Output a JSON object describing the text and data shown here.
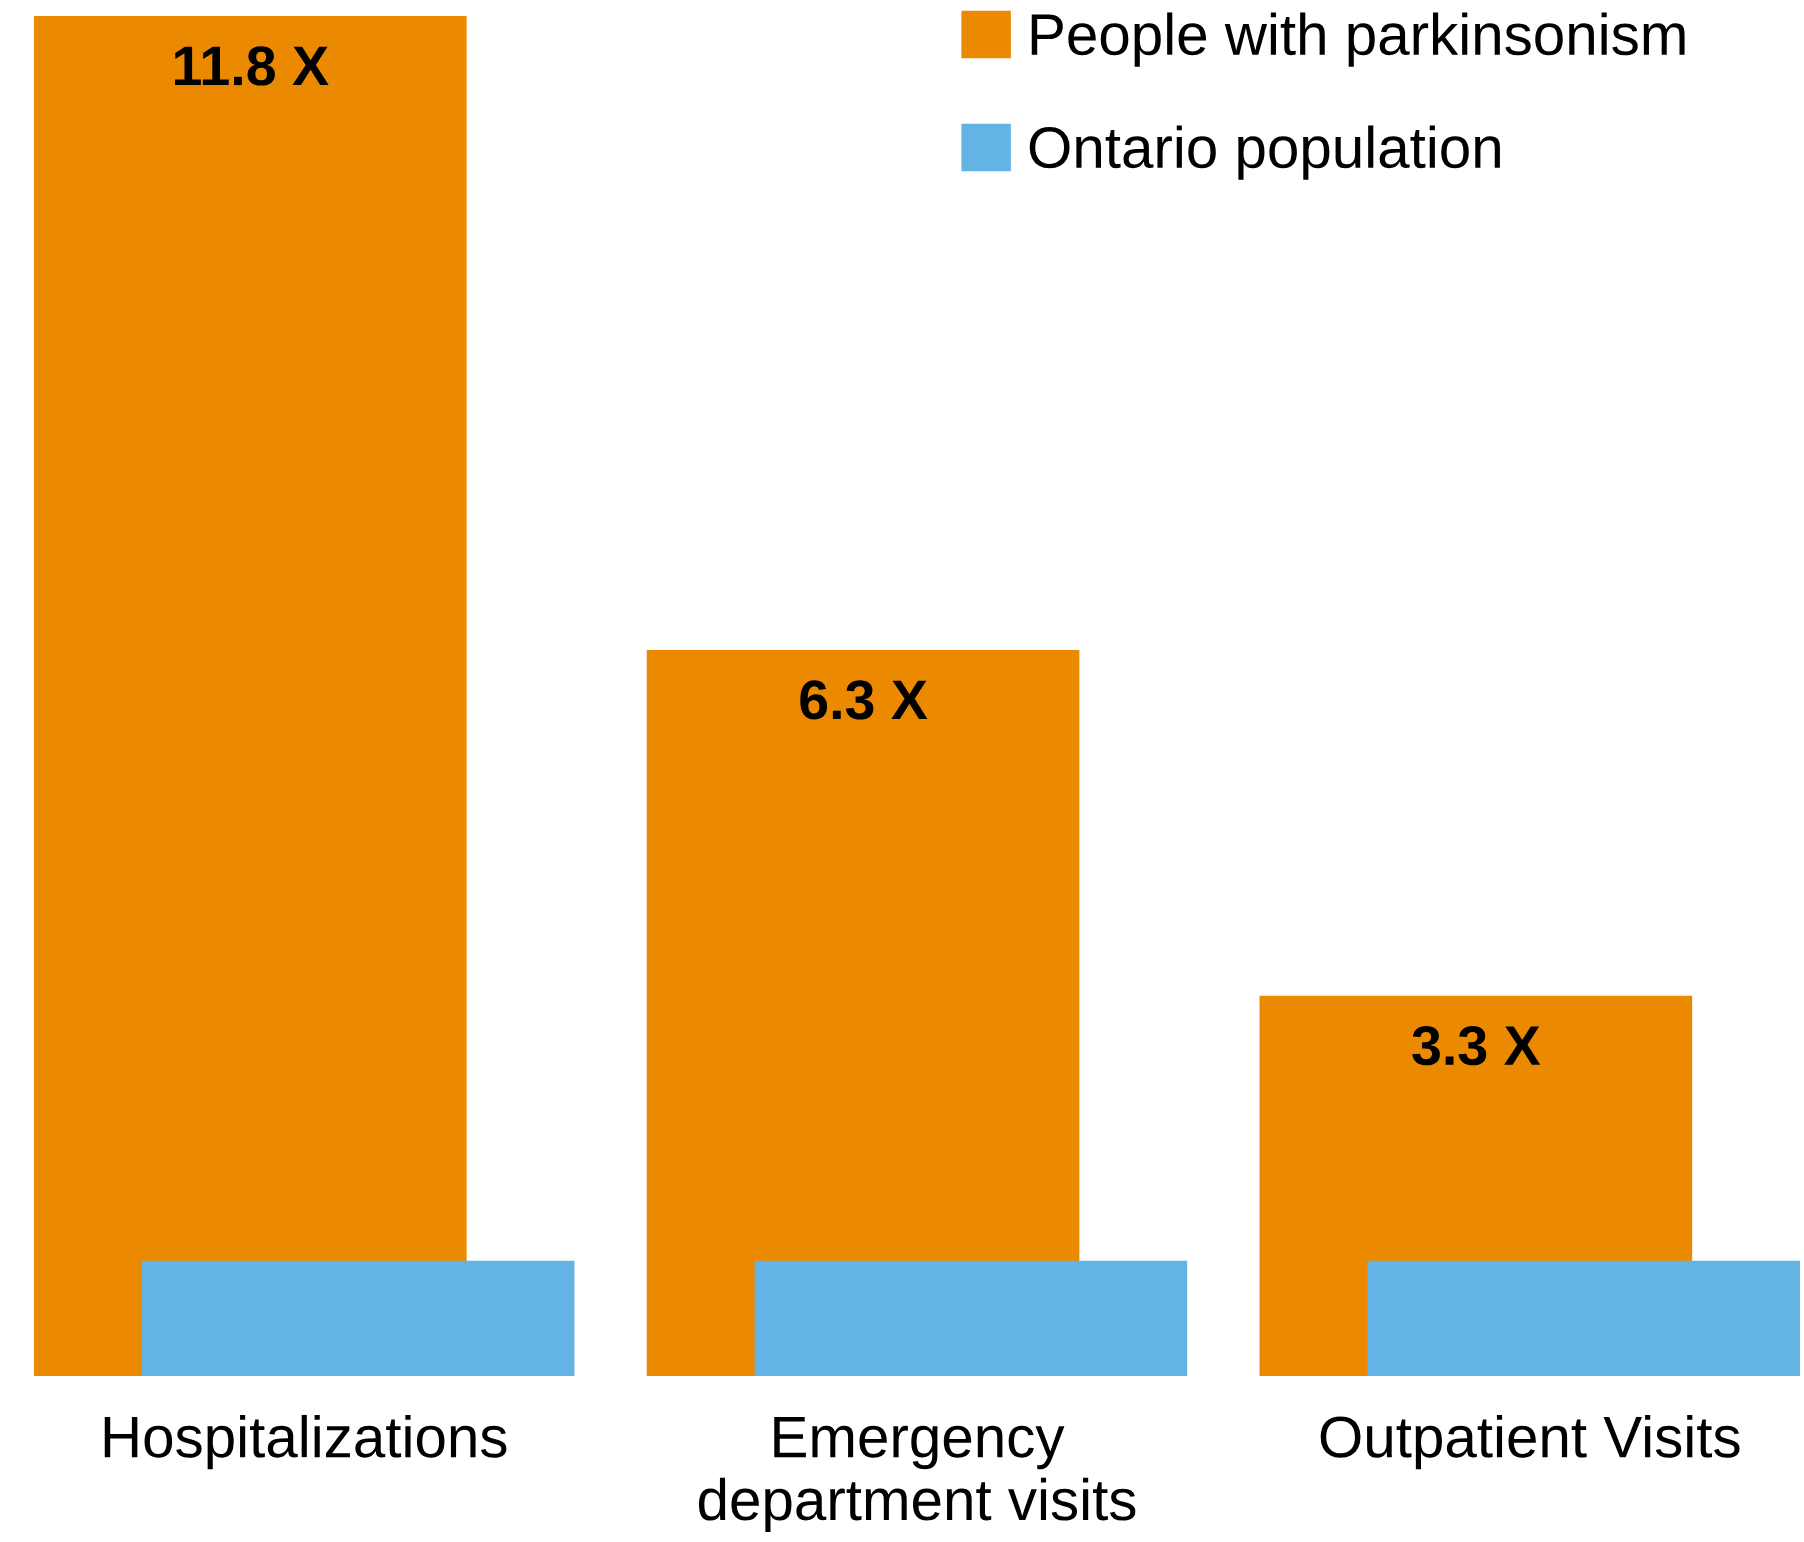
{
  "chart_data": {
    "type": "bar",
    "categories": [
      "Hospitalizations",
      "Emergency\ndepartment visits",
      "Outpatient Visits"
    ],
    "series": [
      {
        "name": "People with parkinsonism",
        "color": "#eb8a00",
        "values": [
          11.8,
          6.3,
          3.3
        ],
        "value_labels": [
          "11.8 X",
          "6.3 X",
          "3.3 X"
        ]
      },
      {
        "name": "Ontario population",
        "color": "#63b4e4",
        "values": [
          1.0,
          1.0,
          1.0
        ]
      }
    ],
    "ylim": [
      0,
      11.8
    ],
    "grid": false,
    "legend": "top right"
  }
}
